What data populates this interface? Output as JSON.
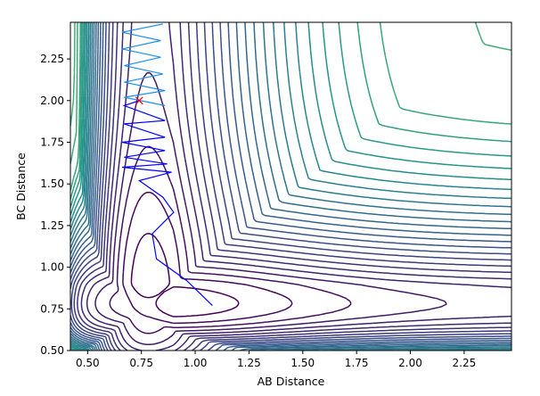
{
  "chart_data": {
    "type": "contour",
    "title": "",
    "xlabel": "AB Distance",
    "ylabel": "BC Distance",
    "xlim": [
      0.42,
      2.47
    ],
    "ylim": [
      0.5,
      2.47
    ],
    "xticks": [
      "0.50",
      "0.75",
      "1.00",
      "1.25",
      "1.50",
      "1.75",
      "2.00",
      "2.25"
    ],
    "yticks": [
      "0.50",
      "0.75",
      "1.00",
      "1.25",
      "1.50",
      "1.75",
      "2.00",
      "2.25"
    ],
    "grid": false,
    "colormap": [
      "#440154",
      "#3b528b",
      "#21918c",
      "#5ec962",
      "#fde725"
    ],
    "contour_levels": [
      -4.6,
      -4.4,
      -4.2,
      -4.0,
      -3.8,
      -3.6,
      -3.4,
      -3.2,
      -3.0,
      -2.8,
      -2.6,
      -2.4,
      -2.2,
      -2.0,
      -1.8,
      -1.6,
      -1.4,
      -1.2,
      -1.0,
      -0.8,
      -0.6,
      -0.4,
      -0.2,
      0.0,
      0.5,
      1.0,
      2.0,
      3.0,
      4.0,
      5.0,
      6.0,
      7.0,
      8.0,
      9.0,
      10.0,
      12.0,
      14.0,
      16.0,
      18.0,
      20.0
    ],
    "trajectory": {
      "color": "#0000ff",
      "start": {
        "x": 0.74,
        "y": 2.0,
        "marker": "x",
        "color": "#ff0000"
      },
      "points": [
        [
          0.74,
          2.0
        ],
        [
          0.67,
          1.97
        ],
        [
          0.86,
          1.88
        ],
        [
          0.67,
          1.86
        ],
        [
          0.86,
          1.78
        ],
        [
          0.66,
          1.75
        ],
        [
          0.86,
          1.7
        ],
        [
          0.67,
          1.66
        ],
        [
          0.87,
          1.62
        ],
        [
          0.66,
          1.6
        ],
        [
          0.89,
          1.57
        ],
        [
          0.74,
          1.52
        ],
        [
          0.85,
          1.42
        ],
        [
          0.9,
          1.33
        ],
        [
          0.8,
          1.2
        ],
        [
          0.82,
          1.05
        ],
        [
          0.96,
          0.92
        ],
        [
          1.08,
          0.77
        ]
      ]
    },
    "trajectory_light": {
      "color": "#1f8ff0",
      "points": [
        [
          0.85,
          2.46
        ],
        [
          0.66,
          2.41
        ],
        [
          0.84,
          2.36
        ],
        [
          0.66,
          2.31
        ],
        [
          0.84,
          2.26
        ],
        [
          0.67,
          2.21
        ],
        [
          0.85,
          2.16
        ],
        [
          0.67,
          2.11
        ],
        [
          0.86,
          2.06
        ],
        [
          0.67,
          2.02
        ],
        [
          0.86,
          1.97
        ]
      ]
    }
  }
}
